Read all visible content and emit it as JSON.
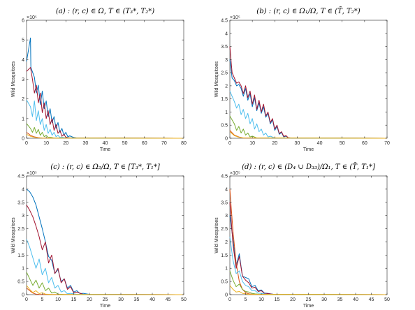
{
  "chart_data": [
    {
      "type": "line",
      "title": "(a) : (r, c) ∈ Ω, T ∈ (T₃*, T₂*)",
      "xlabel": "Time",
      "ylabel": "Wild Mosquitoes",
      "y_exponent": "×10⁵",
      "xlim": [
        0,
        80
      ],
      "ylim": [
        0,
        6
      ],
      "xticks": [
        0,
        10,
        20,
        30,
        40,
        50,
        60,
        70,
        80
      ],
      "yticks": [
        0,
        1,
        2,
        3,
        4,
        5,
        6
      ],
      "series": [
        {
          "color": "#0072bd",
          "x": [
            0,
            2,
            2.2,
            4,
            5,
            6,
            7,
            8,
            9,
            10,
            11,
            12,
            13,
            14,
            15,
            16,
            17,
            18,
            19,
            20,
            21,
            22,
            24,
            26,
            80
          ],
          "y": [
            3.9,
            5.1,
            3.6,
            3.1,
            2.3,
            2.7,
            1.7,
            2.4,
            1.5,
            1.9,
            1.1,
            1.5,
            0.8,
            1.1,
            0.5,
            0.8,
            0.3,
            0.5,
            0.15,
            0.3,
            0.08,
            0.12,
            0.04,
            0.01,
            0
          ]
        },
        {
          "color": "#d95319",
          "x": [
            0,
            2,
            4,
            6,
            8,
            80
          ],
          "y": [
            0.3,
            0.15,
            0.07,
            0.03,
            0.01,
            0
          ]
        },
        {
          "color": "#a2142f",
          "x": [
            0,
            2,
            3,
            4,
            5,
            6,
            7,
            8,
            9,
            10,
            11,
            12,
            13,
            14,
            15,
            16,
            17,
            18,
            19,
            20,
            22,
            80
          ],
          "y": [
            3.4,
            3.6,
            3.0,
            2.3,
            2.7,
            1.8,
            2.3,
            1.3,
            1.8,
            1.0,
            1.4,
            0.7,
            1.0,
            0.4,
            0.7,
            0.25,
            0.4,
            0.1,
            0.2,
            0.05,
            0.02,
            0
          ]
        },
        {
          "color": "#4dbeee",
          "x": [
            0,
            2,
            3,
            4,
            5,
            6,
            7,
            8,
            9,
            10,
            11,
            12,
            13,
            14,
            15,
            16,
            17,
            18,
            20,
            80
          ],
          "y": [
            1.95,
            1.6,
            1.1,
            1.9,
            0.9,
            1.4,
            0.7,
            1.0,
            0.4,
            0.7,
            0.25,
            0.45,
            0.15,
            0.3,
            0.08,
            0.15,
            0.04,
            0.06,
            0.01,
            0
          ]
        },
        {
          "color": "#77ac30",
          "x": [
            0,
            2,
            3,
            4,
            5,
            6,
            7,
            8,
            9,
            10,
            11,
            12,
            14,
            80
          ],
          "y": [
            0.75,
            0.5,
            0.3,
            0.55,
            0.25,
            0.45,
            0.15,
            0.3,
            0.08,
            0.15,
            0.04,
            0.06,
            0.01,
            0
          ]
        },
        {
          "color": "#edb120",
          "x": [
            0,
            2,
            4,
            6,
            8,
            80
          ],
          "y": [
            0.2,
            0.1,
            0.05,
            0.02,
            0.01,
            0
          ]
        }
      ]
    },
    {
      "type": "line",
      "title": "(b) : (r, c) ∈ Ω₁/Ω, T ∈ (T̄, T₂*)",
      "xlabel": "Time",
      "ylabel": "Wild Mosquitoes",
      "y_exponent": "×10⁵",
      "xlim": [
        0,
        70
      ],
      "ylim": [
        0,
        4.5
      ],
      "xticks": [
        0,
        10,
        20,
        30,
        40,
        50,
        60,
        70
      ],
      "yticks": [
        0,
        0.5,
        1,
        1.5,
        2,
        2.5,
        3,
        3.5,
        4,
        4.5
      ],
      "series": [
        {
          "color": "#0072bd",
          "x": [
            0,
            1,
            2,
            3,
            4,
            5,
            6,
            7,
            8,
            9,
            10,
            11,
            12,
            13,
            14,
            15,
            16,
            17,
            18,
            19,
            20,
            21,
            22,
            23,
            24,
            25,
            26,
            28,
            70
          ],
          "y": [
            3.0,
            2.3,
            2.2,
            2.0,
            2.05,
            1.9,
            1.6,
            1.9,
            1.45,
            1.7,
            1.2,
            1.55,
            1.05,
            1.35,
            0.95,
            1.2,
            0.8,
            0.95,
            0.55,
            0.7,
            0.3,
            0.45,
            0.15,
            0.22,
            0.05,
            0.08,
            0.02,
            0.005,
            0
          ]
        },
        {
          "color": "#d95319",
          "x": [
            0,
            2,
            4,
            6,
            70
          ],
          "y": [
            0.3,
            0.12,
            0.05,
            0.01,
            0
          ]
        },
        {
          "color": "#a2142f",
          "x": [
            0,
            1,
            2,
            3,
            4,
            5,
            6,
            7,
            8,
            9,
            10,
            11,
            12,
            13,
            14,
            15,
            16,
            17,
            18,
            19,
            20,
            21,
            22,
            23,
            24,
            25,
            26,
            28,
            70
          ],
          "y": [
            3.5,
            2.5,
            2.3,
            2.1,
            2.15,
            2.0,
            1.7,
            2.0,
            1.55,
            1.8,
            1.3,
            1.65,
            1.1,
            1.45,
            1.0,
            1.3,
            0.85,
            1.0,
            0.6,
            0.75,
            0.35,
            0.5,
            0.18,
            0.25,
            0.07,
            0.1,
            0.02,
            0.005,
            0
          ]
        },
        {
          "color": "#4dbeee",
          "x": [
            0,
            2,
            3,
            4,
            5,
            6,
            7,
            8,
            9,
            10,
            11,
            12,
            13,
            14,
            15,
            16,
            17,
            18,
            20,
            70
          ],
          "y": [
            1.8,
            1.4,
            1.15,
            1.3,
            0.9,
            1.1,
            0.75,
            0.95,
            0.55,
            0.75,
            0.35,
            0.55,
            0.25,
            0.35,
            0.12,
            0.2,
            0.05,
            0.08,
            0.01,
            0
          ]
        },
        {
          "color": "#77ac30",
          "x": [
            0,
            2,
            3,
            4,
            5,
            6,
            7,
            8,
            9,
            10,
            12,
            70
          ],
          "y": [
            0.85,
            0.55,
            0.3,
            0.45,
            0.2,
            0.35,
            0.12,
            0.2,
            0.05,
            0.08,
            0.01,
            0
          ]
        },
        {
          "color": "#edb120",
          "x": [
            0,
            2,
            4,
            6,
            70
          ],
          "y": [
            0.25,
            0.1,
            0.04,
            0.01,
            0
          ]
        }
      ]
    },
    {
      "type": "line",
      "title": "(c) : (r, c) ∈ Ω₂/Ω, T ∈ [T₃*, T₁*]",
      "xlabel": "Time",
      "ylabel": "Wild Mosquitoes",
      "y_exponent": "×10⁵",
      "xlim": [
        0,
        50
      ],
      "ylim": [
        0,
        4.5
      ],
      "xticks": [
        0,
        5,
        10,
        15,
        20,
        25,
        30,
        35,
        40,
        45,
        50
      ],
      "yticks": [
        0,
        0.5,
        1,
        1.5,
        2,
        2.5,
        3,
        3.5,
        4,
        4.5
      ],
      "series": [
        {
          "color": "#0072bd",
          "x": [
            0,
            1,
            2,
            3,
            4,
            5,
            6,
            7,
            8,
            9,
            10,
            11,
            12,
            13,
            14,
            15,
            16,
            17,
            18,
            20,
            50
          ],
          "y": [
            4.0,
            3.9,
            3.7,
            3.4,
            2.95,
            2.5,
            2.0,
            1.45,
            1.3,
            0.8,
            0.95,
            0.5,
            0.6,
            0.25,
            0.35,
            0.1,
            0.15,
            0.04,
            0.05,
            0.01,
            0
          ]
        },
        {
          "color": "#d95319",
          "x": [
            0,
            1,
            2,
            3,
            4,
            50
          ],
          "y": [
            0.25,
            0.15,
            0.06,
            0.02,
            0.01,
            0
          ]
        },
        {
          "color": "#a2142f",
          "x": [
            0,
            1,
            2,
            3,
            4,
            5,
            6,
            7,
            8,
            9,
            10,
            11,
            12,
            13,
            14,
            15,
            16,
            18,
            50
          ],
          "y": [
            3.4,
            3.2,
            2.95,
            2.6,
            2.2,
            1.7,
            2.0,
            1.2,
            1.5,
            0.8,
            1.0,
            0.45,
            0.6,
            0.2,
            0.3,
            0.07,
            0.1,
            0.01,
            0
          ]
        },
        {
          "color": "#4dbeee",
          "x": [
            0,
            1,
            2,
            3,
            4,
            5,
            6,
            7,
            8,
            9,
            10,
            11,
            12,
            13,
            14,
            16,
            50
          ],
          "y": [
            2.1,
            1.8,
            1.4,
            1.0,
            1.35,
            0.75,
            1.0,
            0.45,
            0.65,
            0.25,
            0.35,
            0.1,
            0.15,
            0.03,
            0.05,
            0.01,
            0
          ]
        },
        {
          "color": "#77ac30",
          "x": [
            0,
            1,
            2,
            3,
            4,
            5,
            6,
            7,
            8,
            9,
            10,
            12,
            50
          ],
          "y": [
            0.85,
            0.6,
            0.35,
            0.55,
            0.25,
            0.45,
            0.15,
            0.25,
            0.06,
            0.1,
            0.02,
            0.005,
            0
          ]
        },
        {
          "color": "#edb120",
          "x": [
            0,
            1,
            2,
            3,
            4,
            5,
            6,
            8,
            50
          ],
          "y": [
            0.35,
            0.2,
            0.08,
            0.15,
            0.04,
            0.07,
            0.02,
            0.005,
            0
          ]
        }
      ]
    },
    {
      "type": "line",
      "title": "(d) : (r, c) ∈ (D₄ ∪ D₃₃)/Ω₁, T ∈ (T̄, T₁*]",
      "xlabel": "Time",
      "ylabel": "Wild Mosquitoes",
      "y_exponent": "×10⁵",
      "xlim": [
        0,
        50
      ],
      "ylim": [
        0,
        4.5
      ],
      "xticks": [
        0,
        5,
        10,
        15,
        20,
        25,
        30,
        35,
        40,
        45,
        50
      ],
      "yticks": [
        0,
        0.5,
        1,
        1.5,
        2,
        2.5,
        3,
        3.5,
        4,
        4.5
      ],
      "series": [
        {
          "color": "#0072bd",
          "x": [
            0,
            1,
            2,
            3,
            4,
            5,
            6,
            7,
            8,
            9,
            10,
            11,
            12,
            14,
            50
          ],
          "y": [
            3.0,
            2.1,
            1.1,
            1.55,
            0.7,
            0.65,
            0.6,
            0.3,
            0.35,
            0.15,
            0.18,
            0.06,
            0.05,
            0.01,
            0
          ]
        },
        {
          "color": "#d95319",
          "x": [
            0,
            1,
            2,
            3,
            4,
            5,
            6,
            8,
            50
          ],
          "y": [
            4.0,
            2.4,
            1.2,
            0.5,
            0.2,
            0.08,
            0.03,
            0.01,
            0
          ]
        },
        {
          "color": "#a2142f",
          "x": [
            0,
            1,
            2,
            3,
            4,
            5,
            6,
            7,
            8,
            9,
            10,
            11,
            12,
            14,
            50
          ],
          "y": [
            3.5,
            1.9,
            1.0,
            1.45,
            0.7,
            0.55,
            0.45,
            0.25,
            0.28,
            0.12,
            0.15,
            0.05,
            0.04,
            0.01,
            0
          ]
        },
        {
          "color": "#4dbeee",
          "x": [
            0,
            1,
            2,
            3,
            4,
            5,
            6,
            7,
            8,
            9,
            10,
            12,
            50
          ],
          "y": [
            2.2,
            1.3,
            0.8,
            0.9,
            0.5,
            0.35,
            0.3,
            0.15,
            0.15,
            0.06,
            0.05,
            0.01,
            0
          ]
        },
        {
          "color": "#77ac30",
          "x": [
            0,
            1,
            2,
            3,
            4,
            5,
            6,
            7,
            8,
            10,
            50
          ],
          "y": [
            0.9,
            0.55,
            0.3,
            0.4,
            0.2,
            0.12,
            0.1,
            0.05,
            0.03,
            0.01,
            0
          ]
        },
        {
          "color": "#edb120",
          "x": [
            0,
            1,
            2,
            3,
            4,
            6,
            50
          ],
          "y": [
            0.35,
            0.2,
            0.1,
            0.12,
            0.05,
            0.01,
            0
          ]
        }
      ]
    }
  ]
}
